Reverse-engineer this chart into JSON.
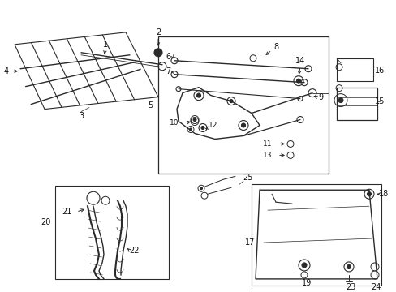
{
  "bg_color": "#ffffff",
  "lc": "#2a2a2a",
  "fig_width": 4.89,
  "fig_height": 3.6,
  "dpi": 100,
  "label_fs": 7.0,
  "label_color": "#111111"
}
